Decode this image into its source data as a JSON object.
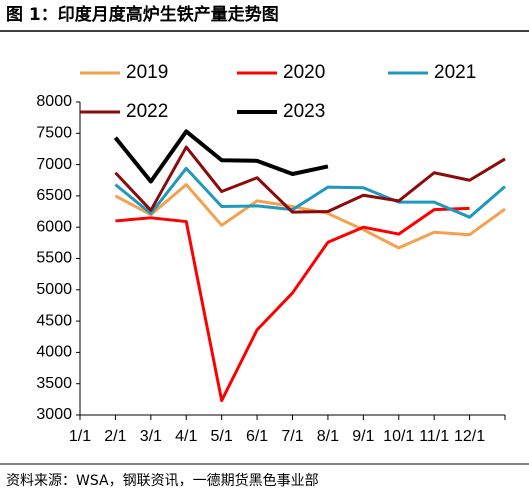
{
  "chart_data": {
    "type": "line",
    "title": "图 1：印度月度高炉生铁产量走势图",
    "source": "资料来源：WSA，钢联资讯，一德期货黑色事业部",
    "categories": [
      "1/1",
      "2/1",
      "3/1",
      "4/1",
      "5/1",
      "6/1",
      "7/1",
      "8/1",
      "9/1",
      "10/1",
      "11/1",
      "12/1",
      null
    ],
    "series": [
      {
        "name": "2019",
        "color": "#f4a04e",
        "values": [
          null,
          6500,
          6200,
          6680,
          6030,
          6420,
          6330,
          6220,
          5960,
          5670,
          5920,
          5880,
          6290
        ]
      },
      {
        "name": "2020",
        "color": "#ff0000",
        "values": [
          null,
          6100,
          6150,
          6090,
          3230,
          4360,
          4950,
          5760,
          6000,
          5890,
          6280,
          6300,
          null
        ]
      },
      {
        "name": "2021",
        "color": "#1f98be",
        "values": [
          null,
          6680,
          6220,
          6940,
          6330,
          6340,
          6280,
          6640,
          6630,
          6400,
          6400,
          6160,
          6650
        ]
      },
      {
        "name": "2022",
        "color": "#8b0a0a",
        "values": [
          null,
          6870,
          6270,
          7280,
          6570,
          6790,
          6240,
          6250,
          6510,
          6420,
          6870,
          6750,
          7090
        ]
      },
      {
        "name": "2023",
        "color": "#000000",
        "values": [
          null,
          7430,
          6730,
          7530,
          7070,
          7060,
          6850,
          6970,
          null,
          null,
          null,
          null,
          null
        ]
      }
    ],
    "ylim": [
      3000,
      8000
    ],
    "yticks": [
      3000,
      3500,
      4000,
      4500,
      5000,
      5500,
      6000,
      6500,
      7000,
      7500,
      8000
    ],
    "legend": "top"
  }
}
